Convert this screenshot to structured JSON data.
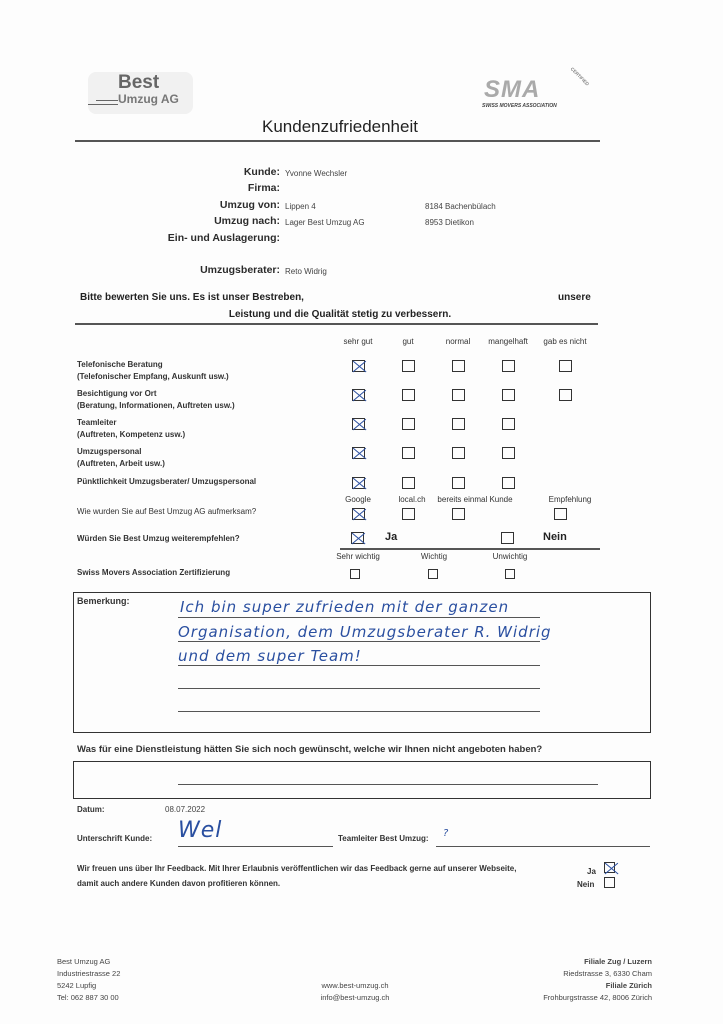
{
  "header": {
    "company_logo": {
      "line1": "Best",
      "line2": "Umzug AG"
    },
    "association_logo": {
      "mark": "SMA",
      "text": "SWISS MOVERS ASSOCIATION",
      "badge": "CERTIFIED"
    },
    "title": "Kundenzufriedenheit"
  },
  "info": {
    "kunde_label": "Kunde:",
    "kunde": "Yvonne Wechsler",
    "firma_label": "Firma:",
    "von_label": "Umzug von:",
    "von_street": "Lippen 4",
    "von_city": "8184 Bachenbülach",
    "nach_label": "Umzug nach:",
    "nach_street": "Lager Best Umzug AG",
    "nach_city": "8953 Dietikon",
    "lager_label": "Ein- und Auslagerung:",
    "berater_label": "Umzugsberater:",
    "berater": "Reto Widrig"
  },
  "intro": {
    "line1": "Bitte bewerten Sie uns. Es ist unser Bestreben,",
    "line1_end": "unsere",
    "line2": "Leistung und die Qualität stetig zu verbessern."
  },
  "rating": {
    "columns": [
      "sehr gut",
      "gut",
      "normal",
      "mangelhaft",
      "gab es nicht"
    ],
    "rows": [
      {
        "title": "Telefonische Beratung",
        "sub": "(Telefonischer Empfang, Auskunft usw.)",
        "boxes": 5,
        "checked": 0
      },
      {
        "title": "Besichtigung vor Ort",
        "sub": "(Beratung, Informationen, Auftreten usw.)",
        "boxes": 5,
        "checked": 0
      },
      {
        "title": "Teamleiter",
        "sub": "(Auftreten, Kompetenz usw.)",
        "boxes": 4,
        "checked": 0
      },
      {
        "title": "Umzugspersonal",
        "sub": "(Auftreten, Arbeit usw.)",
        "boxes": 4,
        "checked": 0
      },
      {
        "title": "Pünktlichkeit Umzugsberater/ Umzugspersonal",
        "sub": "",
        "boxes": 4,
        "checked": 0
      }
    ]
  },
  "source": {
    "question": "Wie wurden Sie auf Best Umzug AG aufmerksam?",
    "options": [
      "Google",
      "local.ch",
      "bereits einmal Kunde",
      "Empfehlung"
    ],
    "checked": 0
  },
  "recommend": {
    "question": "Würden Sie Best Umzug weiterempfehlen?",
    "yes": "Ja",
    "no": "Nein",
    "checked": "Ja"
  },
  "sma": {
    "question": "Swiss Movers Association Zertifizierung",
    "options": [
      "Sehr wichtig",
      "Wichtig",
      "Unwichtig"
    ],
    "checked": null
  },
  "remark": {
    "label": "Bemerkung:",
    "lines": [
      "Ich bin super zufrieden mit der ganzen",
      "Organisation, dem Umzugsberater R. Widrig",
      "und dem super Team!"
    ]
  },
  "service": {
    "question": "Was für eine Dienstleistung hätten Sie sich noch gewünscht, welche wir Ihnen nicht angeboten haben?"
  },
  "sign": {
    "datum_label": "Datum:",
    "datum": "08.07.2022",
    "kunde_label": "Unterschrift Kunde:",
    "signature": "Wel",
    "teamleiter_label": "Teamleiter Best Umzug:",
    "teamleiter": "?"
  },
  "publish": {
    "line1": "Wir freuen uns über Ihr Feedback. Mit Ihrer Erlaubnis veröffentlichen wir das Feedback gerne auf unserer Webseite,",
    "line2": "damit auch andere Kunden davon profitieren können.",
    "yes": "Ja",
    "no": "Nein",
    "checked": "Ja"
  },
  "footer": {
    "left": [
      "Best Umzug AG",
      "Industriestrasse 22",
      "5242 Lupfig",
      "Tel: 062 887 30 00"
    ],
    "center": [
      "www.best-umzug.ch",
      "info@best-umzug.ch"
    ],
    "right": [
      "Filiale Zug / Luzern",
      "Riedstrasse 3, 6330 Cham",
      "Filiale Zürich",
      "Frohburgstrasse 42, 8006 Zürich"
    ]
  },
  "colors": {
    "ink": "#2a4fa0",
    "text": "#222222"
  }
}
